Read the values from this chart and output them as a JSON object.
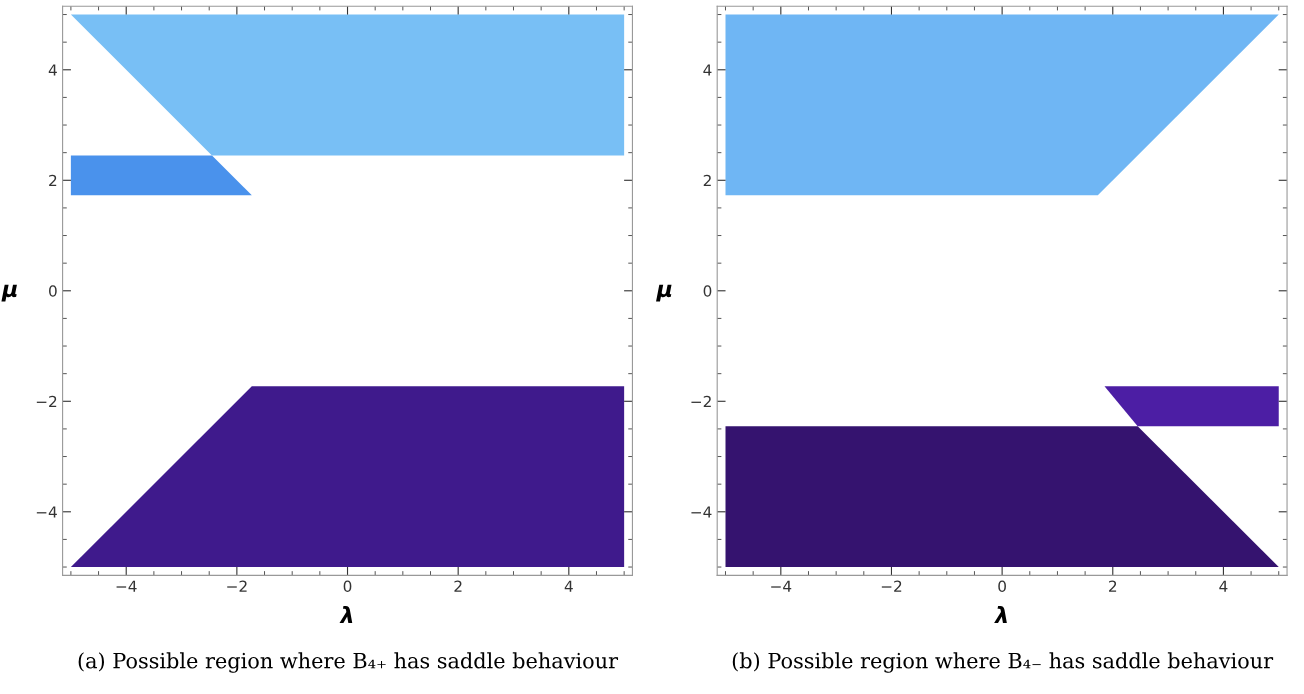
{
  "chart_data": [
    {
      "type": "area",
      "title": "(a) Possible region where B₄₊ has saddle behaviour",
      "xlabel": "λ",
      "ylabel": "μ",
      "xlim": [
        -5.15,
        5.15
      ],
      "ylim": [
        -5.15,
        5.15
      ],
      "xticks": [
        -4,
        -2,
        0,
        2,
        4
      ],
      "yticks": [
        -4,
        -2,
        0,
        2,
        4
      ],
      "grid": false,
      "legend": false,
      "series": [
        {
          "color": "#78bff5",
          "x": [
            -5,
            5,
            5,
            -2.45
          ],
          "values": [
            5,
            5,
            2.45,
            2.45
          ]
        },
        {
          "color": "#4a92ec",
          "x": [
            -5,
            -2.45,
            -1.73,
            -5
          ],
          "values": [
            2.45,
            2.45,
            1.73,
            1.73
          ]
        },
        {
          "color": "#3f1a8c",
          "x": [
            -5,
            -1.73,
            5,
            5
          ],
          "values": [
            -5,
            -1.73,
            -1.73,
            -5
          ]
        }
      ]
    },
    {
      "type": "area",
      "title": "(b) Possible region where B₄₋ has saddle behaviour",
      "xlabel": "λ",
      "ylabel": "μ",
      "xlim": [
        -5.15,
        5.15
      ],
      "ylim": [
        -5.15,
        5.15
      ],
      "xticks": [
        -4,
        -2,
        0,
        2,
        4
      ],
      "yticks": [
        -4,
        -2,
        0,
        2,
        4
      ],
      "grid": false,
      "legend": false,
      "series": [
        {
          "color": "#6fb6f4",
          "x": [
            -5,
            5,
            1.73,
            -5
          ],
          "values": [
            5,
            5,
            1.73,
            1.73
          ]
        },
        {
          "color": "#4c1ea4",
          "x": [
            1.85,
            5,
            5,
            2.45
          ],
          "values": [
            -1.73,
            -1.73,
            -2.45,
            -2.45
          ]
        },
        {
          "color": "#35136f",
          "x": [
            -5,
            2.45,
            5,
            -5
          ],
          "values": [
            -2.45,
            -2.45,
            -5,
            -5
          ]
        }
      ]
    }
  ]
}
